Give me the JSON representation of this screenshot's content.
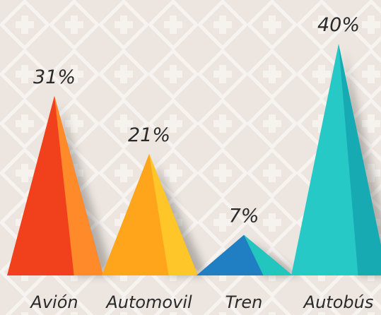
{
  "chart_data": {
    "type": "pyramid",
    "categories": [
      "Avión",
      "Automovil",
      "Tren",
      "Autobús"
    ],
    "values": [
      31,
      21,
      7,
      40
    ],
    "value_labels": [
      "31%",
      "21%",
      "7%",
      "40%"
    ],
    "colors": [
      [
        "#f0401c",
        "#ff8a2a"
      ],
      [
        "#ffa51c",
        "#ffc629"
      ],
      [
        "#1f7fc2",
        "#22c6bf"
      ],
      [
        "#27c9c6",
        "#17aab3"
      ]
    ]
  }
}
